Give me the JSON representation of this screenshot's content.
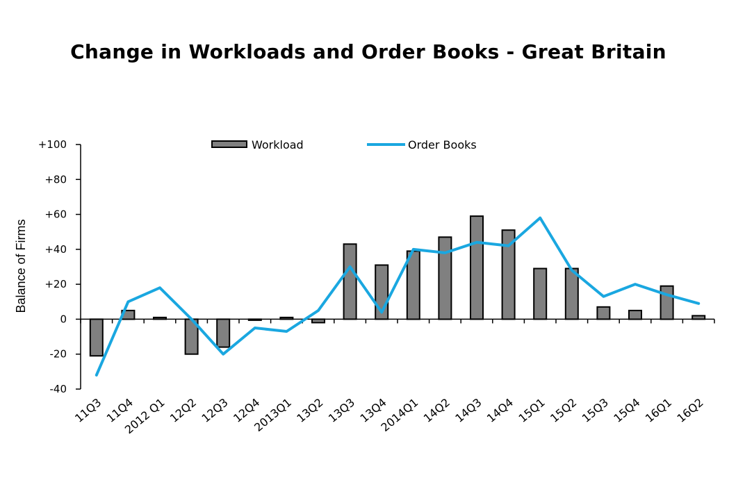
{
  "chart_data": {
    "type": "bar",
    "title": "Change in Workloads and Order Books - Great Britain",
    "ylabel": "Balance of Firms",
    "xlabel": "",
    "ylim": [
      -40,
      100
    ],
    "yticks": [
      -40,
      -20,
      0,
      20,
      40,
      60,
      80,
      100
    ],
    "ytick_labels": [
      "-40",
      "-20",
      "0",
      "+20",
      "+40",
      "+60",
      "+80",
      "+100"
    ],
    "legend_position": "top",
    "grid": false,
    "categories": [
      "11Q3",
      "11Q4",
      "2012 Q1",
      "12Q2",
      "12Q3",
      "12Q4",
      "2013Q1",
      "13Q2",
      "13Q3",
      "13Q4",
      "2014Q1",
      "14Q2",
      "14Q3",
      "14Q4",
      "15Q1",
      "15Q2",
      "15Q3",
      "15Q4",
      "16Q1",
      "16Q2"
    ],
    "series": [
      {
        "name": "Workload",
        "type": "bar",
        "color": "#808080",
        "values": [
          -21,
          5,
          1,
          -20,
          -16,
          0,
          1,
          -2,
          43,
          31,
          39,
          47,
          59,
          51,
          29,
          29,
          7,
          5,
          19,
          2
        ]
      },
      {
        "name": "Order Books",
        "type": "line",
        "color": "#1aa7e0",
        "values": [
          -32,
          10,
          18,
          0,
          -20,
          -5,
          -7,
          5,
          30,
          4,
          40,
          38,
          44,
          42,
          58,
          28,
          13,
          20,
          14,
          9
        ]
      }
    ]
  }
}
